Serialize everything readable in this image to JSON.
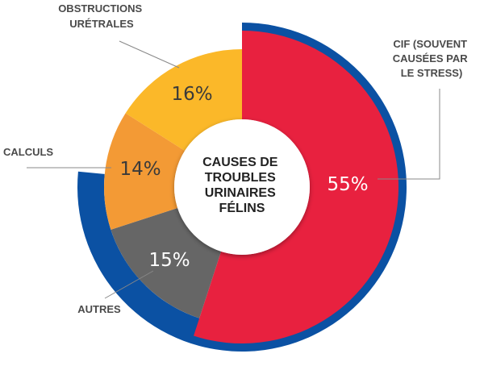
{
  "chart_data": {
    "type": "pie",
    "title": "CAUSES DE TROUBLES URINAIRES FÉLINS",
    "title_lines": [
      "CAUSES DE",
      "TROUBLES",
      "URINAIRES",
      "FÉLINS"
    ],
    "slices": [
      {
        "label_lines": [
          "CIF (SOUVENT",
          "CAUSÉES PAR",
          "LE STRESS)"
        ],
        "value": 55,
        "value_label": "55%",
        "color": "#e8213f"
      },
      {
        "label_lines": [
          "AUTRES"
        ],
        "value": 15,
        "value_label": "15%",
        "color": "#666666"
      },
      {
        "label_lines": [
          "CALCULS"
        ],
        "value": 14,
        "value_label": "14%",
        "color": "#f39a35"
      },
      {
        "label_lines": [
          "OBSTRUCTIONS",
          "URÉTRALES"
        ],
        "value": 16,
        "value_label": "16%",
        "color": "#fbb829"
      }
    ],
    "outer_ring_color": "#0b51a3",
    "legend": "none"
  }
}
